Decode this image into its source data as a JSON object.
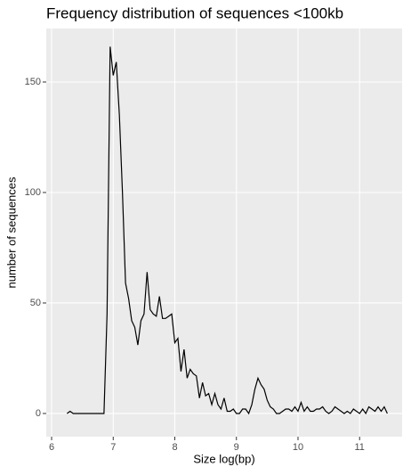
{
  "chart_data": {
    "type": "line",
    "title": "Frequency distribution of sequences <100kb",
    "x_label": "Size log(bp)",
    "y_label": "number of sequences",
    "x": [
      6.25,
      6.3,
      6.35,
      6.4,
      6.45,
      6.5,
      6.55,
      6.6,
      6.65,
      6.7,
      6.75,
      6.8,
      6.85,
      6.9,
      6.95,
      7.0,
      7.05,
      7.1,
      7.15,
      7.2,
      7.25,
      7.3,
      7.35,
      7.4,
      7.45,
      7.5,
      7.55,
      7.6,
      7.65,
      7.7,
      7.75,
      7.8,
      7.85,
      7.9,
      7.95,
      8.0,
      8.05,
      8.1,
      8.15,
      8.2,
      8.25,
      8.3,
      8.35,
      8.4,
      8.45,
      8.5,
      8.55,
      8.6,
      8.65,
      8.7,
      8.75,
      8.8,
      8.85,
      8.9,
      8.95,
      9.0,
      9.05,
      9.1,
      9.15,
      9.2,
      9.25,
      9.3,
      9.35,
      9.4,
      9.45,
      9.5,
      9.55,
      9.6,
      9.65,
      9.7,
      9.75,
      9.8,
      9.85,
      9.9,
      9.95,
      10.0,
      10.05,
      10.1,
      10.15,
      10.2,
      10.25,
      10.3,
      10.35,
      10.4,
      10.45,
      10.5,
      10.55,
      10.6,
      10.65,
      10.7,
      10.75,
      10.8,
      10.85,
      10.9,
      10.95,
      11.0,
      11.05,
      11.1,
      11.15,
      11.2,
      11.25,
      11.3,
      11.35,
      11.4,
      11.45
    ],
    "series": [
      {
        "color": "#000000",
        "values": [
          0,
          1,
          0,
          0,
          0,
          0,
          0,
          0,
          0,
          0,
          0,
          0,
          0,
          45,
          166,
          153,
          159,
          135,
          100,
          59,
          52,
          42,
          39,
          31,
          42,
          45,
          64,
          47,
          45,
          44,
          53,
          43,
          43,
          44,
          45,
          32,
          34,
          19,
          29,
          16,
          20,
          18,
          17,
          7,
          14,
          8,
          9,
          4,
          9,
          4,
          2,
          7,
          1,
          1,
          2,
          0,
          0,
          2,
          2,
          0,
          4,
          11,
          16,
          13,
          11,
          6,
          3,
          2,
          0,
          0,
          1,
          2,
          2,
          1,
          3,
          1,
          5,
          1,
          3,
          1,
          1,
          2,
          2,
          3,
          1,
          0,
          1,
          3,
          2,
          1,
          0,
          1,
          0,
          2,
          1,
          0,
          2,
          0,
          3,
          2,
          1,
          3,
          1,
          3,
          0
        ]
      }
    ],
    "xlim": [
      5.913,
      11.69
    ],
    "ylim": [
      -10.5,
      174.2
    ],
    "xticks": [
      6,
      7,
      8,
      9,
      10,
      11
    ],
    "yticks": [
      0,
      50,
      100,
      150
    ],
    "grid": true
  }
}
